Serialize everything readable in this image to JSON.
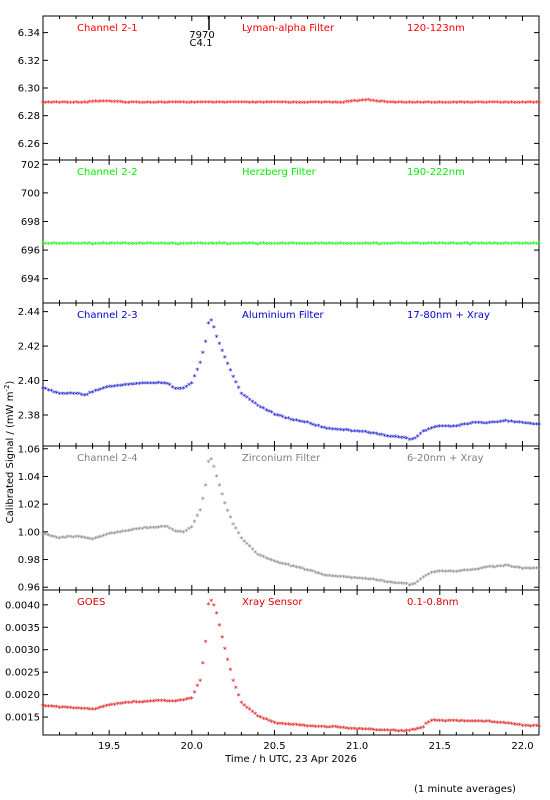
{
  "figure": {
    "xlabel": "Time / h UTC, 23 Apr 2026",
    "ylabel_main": "Calibrated Signal / (mW m",
    "ylabel_sup": "-2",
    "ylabel_close": ")",
    "footer": "(1 minute averages)",
    "x_ticks": [
      "19.5",
      "20.0",
      "20.5",
      "21.0",
      "21.5",
      "22.0"
    ],
    "annotation_top": "7970",
    "annotation_bottom": "C4.1"
  },
  "chart_data": [
    {
      "type": "scatter",
      "label": "Channel 2-1",
      "filter": "Lyman-alpha Filter",
      "band": "120-123nm",
      "color": "#ff0000",
      "xlim": [
        19.1,
        22.1
      ],
      "ylim": [
        6.248,
        6.352
      ],
      "yticks": [
        "6.26",
        "6.28",
        "6.30",
        "6.32",
        "6.34"
      ],
      "ytick_values": [
        6.26,
        6.28,
        6.3,
        6.32,
        6.34
      ],
      "points": [
        [
          19.1,
          6.289
        ],
        [
          19.35,
          6.289
        ],
        [
          19.45,
          6.29
        ],
        [
          19.6,
          6.289
        ],
        [
          20.0,
          6.289
        ],
        [
          20.5,
          6.289
        ],
        [
          20.9,
          6.289
        ],
        [
          21.0,
          6.29
        ],
        [
          21.05,
          6.291
        ],
        [
          21.12,
          6.29
        ],
        [
          21.2,
          6.289
        ],
        [
          21.6,
          6.289
        ],
        [
          22.1,
          6.289
        ]
      ]
    },
    {
      "type": "scatter",
      "label": "Channel 2-2",
      "filter": "Herzberg Filter",
      "band": "190-222nm",
      "color": "#00ee00",
      "xlim": [
        19.1,
        22.1
      ],
      "ylim": [
        692.3,
        702.3
      ],
      "yticks": [
        "694",
        "696",
        "698",
        "700",
        "702"
      ],
      "ytick_values": [
        694,
        696,
        698,
        700,
        702
      ],
      "points": [
        [
          19.1,
          696.4
        ],
        [
          19.5,
          696.4
        ],
        [
          20.0,
          696.4
        ],
        [
          20.5,
          696.4
        ],
        [
          21.0,
          696.4
        ],
        [
          21.5,
          696.4
        ],
        [
          22.1,
          696.4
        ]
      ]
    },
    {
      "type": "scatter",
      "label": "Channel 2-3",
      "filter": "Aluminium Filter",
      "band": "17-80nm + Xray",
      "color": "#0000cc",
      "xlim": [
        19.1,
        22.1
      ],
      "ylim": [
        2.362,
        2.445
      ],
      "yticks": [
        "2.38",
        "2.40",
        "2.42",
        "2.44"
      ],
      "ytick_values": [
        2.38,
        2.4,
        2.42,
        2.44
      ],
      "points": [
        [
          19.1,
          2.395
        ],
        [
          19.2,
          2.392
        ],
        [
          19.3,
          2.392
        ],
        [
          19.35,
          2.391
        ],
        [
          19.4,
          2.393
        ],
        [
          19.5,
          2.396
        ],
        [
          19.6,
          2.397
        ],
        [
          19.7,
          2.398
        ],
        [
          19.85,
          2.398
        ],
        [
          19.9,
          2.395
        ],
        [
          19.95,
          2.395
        ],
        [
          20.0,
          2.398
        ],
        [
          20.05,
          2.41
        ],
        [
          20.08,
          2.42
        ],
        [
          20.1,
          2.433
        ],
        [
          20.12,
          2.435
        ],
        [
          20.15,
          2.425
        ],
        [
          20.2,
          2.413
        ],
        [
          20.25,
          2.402
        ],
        [
          20.3,
          2.392
        ],
        [
          20.4,
          2.385
        ],
        [
          20.5,
          2.38
        ],
        [
          20.6,
          2.377
        ],
        [
          20.7,
          2.375
        ],
        [
          20.8,
          2.372
        ],
        [
          20.9,
          2.371
        ],
        [
          21.0,
          2.37
        ],
        [
          21.1,
          2.369
        ],
        [
          21.2,
          2.367
        ],
        [
          21.3,
          2.366
        ],
        [
          21.32,
          2.365
        ],
        [
          21.35,
          2.366
        ],
        [
          21.4,
          2.37
        ],
        [
          21.45,
          2.372
        ],
        [
          21.5,
          2.373
        ],
        [
          21.6,
          2.373
        ],
        [
          21.7,
          2.375
        ],
        [
          21.8,
          2.375
        ],
        [
          21.9,
          2.376
        ],
        [
          22.0,
          2.375
        ],
        [
          22.1,
          2.374
        ]
      ]
    },
    {
      "type": "scatter",
      "label": "Channel 2-4",
      "filter": "Zirconium Filter",
      "band": "6-20nm + Xray",
      "color": "#808080",
      "xlim": [
        19.1,
        22.1
      ],
      "ylim": [
        0.958,
        1.062
      ],
      "yticks": [
        "0.96",
        "0.98",
        "1.00",
        "1.02",
        "1.04",
        "1.06"
      ],
      "ytick_values": [
        0.96,
        0.98,
        1.0,
        1.02,
        1.04,
        1.06
      ],
      "points": [
        [
          19.1,
          0.998
        ],
        [
          19.2,
          0.995
        ],
        [
          19.3,
          0.996
        ],
        [
          19.4,
          0.994
        ],
        [
          19.5,
          0.998
        ],
        [
          19.6,
          1.0
        ],
        [
          19.7,
          1.002
        ],
        [
          19.85,
          1.003
        ],
        [
          19.9,
          1.0
        ],
        [
          19.95,
          0.999
        ],
        [
          20.0,
          1.003
        ],
        [
          20.05,
          1.015
        ],
        [
          20.08,
          1.03
        ],
        [
          20.1,
          1.05
        ],
        [
          20.12,
          1.052
        ],
        [
          20.15,
          1.04
        ],
        [
          20.2,
          1.02
        ],
        [
          20.25,
          1.005
        ],
        [
          20.3,
          0.995
        ],
        [
          20.4,
          0.983
        ],
        [
          20.5,
          0.978
        ],
        [
          20.6,
          0.975
        ],
        [
          20.7,
          0.972
        ],
        [
          20.8,
          0.968
        ],
        [
          20.9,
          0.967
        ],
        [
          21.0,
          0.966
        ],
        [
          21.1,
          0.965
        ],
        [
          21.2,
          0.963
        ],
        [
          21.3,
          0.962
        ],
        [
          21.32,
          0.961
        ],
        [
          21.35,
          0.962
        ],
        [
          21.4,
          0.967
        ],
        [
          21.45,
          0.97
        ],
        [
          21.5,
          0.971
        ],
        [
          21.6,
          0.971
        ],
        [
          21.7,
          0.972
        ],
        [
          21.8,
          0.974
        ],
        [
          21.9,
          0.975
        ],
        [
          22.0,
          0.973
        ],
        [
          22.1,
          0.973
        ]
      ]
    },
    {
      "type": "scatter",
      "label": "GOES",
      "filter": "Xray Sensor",
      "band": "0.1-0.8nm",
      "color": "#dd0000",
      "xlim": [
        19.1,
        22.1
      ],
      "ylim": [
        0.0011,
        0.00433
      ],
      "yticks": [
        "0.0015",
        "0.0020",
        "0.0025",
        "0.0030",
        "0.0035",
        "0.0040"
      ],
      "ytick_values": [
        0.0015,
        0.002,
        0.0025,
        0.003,
        0.0035,
        0.004
      ],
      "points": [
        [
          19.1,
          0.00173
        ],
        [
          19.2,
          0.0017
        ],
        [
          19.3,
          0.00168
        ],
        [
          19.4,
          0.00165
        ],
        [
          19.5,
          0.00175
        ],
        [
          19.6,
          0.0018
        ],
        [
          19.7,
          0.00182
        ],
        [
          19.8,
          0.00185
        ],
        [
          19.9,
          0.00183
        ],
        [
          20.0,
          0.0019
        ],
        [
          20.05,
          0.0023
        ],
        [
          20.08,
          0.003
        ],
        [
          20.1,
          0.004
        ],
        [
          20.12,
          0.0041
        ],
        [
          20.15,
          0.0038
        ],
        [
          20.2,
          0.003
        ],
        [
          20.25,
          0.0023
        ],
        [
          20.3,
          0.0018
        ],
        [
          20.4,
          0.0015
        ],
        [
          20.5,
          0.00135
        ],
        [
          20.7,
          0.00128
        ],
        [
          20.9,
          0.00125
        ],
        [
          21.0,
          0.00122
        ],
        [
          21.2,
          0.00118
        ],
        [
          21.3,
          0.00117
        ],
        [
          21.4,
          0.00125
        ],
        [
          21.42,
          0.00135
        ],
        [
          21.45,
          0.0014
        ],
        [
          21.6,
          0.0014
        ],
        [
          21.8,
          0.00138
        ],
        [
          21.9,
          0.00135
        ],
        [
          22.0,
          0.0013
        ],
        [
          22.1,
          0.00128
        ]
      ]
    }
  ]
}
